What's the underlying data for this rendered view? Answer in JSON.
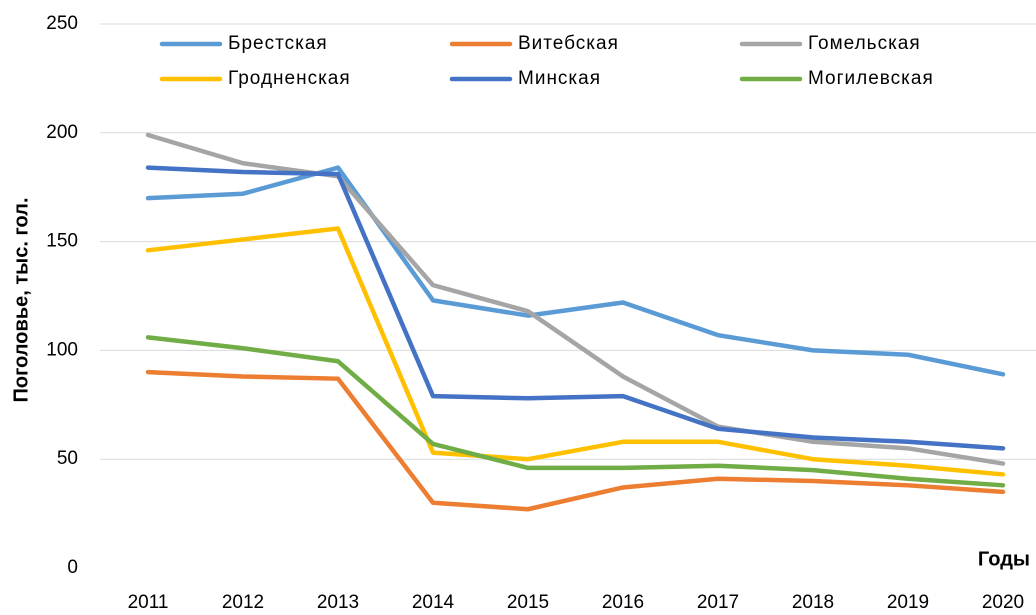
{
  "chart_data": {
    "type": "line",
    "y_label": "Поголовье, тыс. гол.",
    "x_label": "Годы",
    "categories": [
      "2011",
      "2012",
      "2013",
      "2014",
      "2015",
      "2016",
      "2017",
      "2018",
      "2019",
      "2020"
    ],
    "series": [
      {
        "name": "Брестская",
        "color": "#5b9bd5",
        "values": [
          170,
          172,
          184,
          123,
          116,
          122,
          107,
          100,
          98,
          89
        ]
      },
      {
        "name": "Витебская",
        "color": "#ed7d31",
        "values": [
          90,
          88,
          87,
          30,
          27,
          37,
          41,
          40,
          38,
          35
        ]
      },
      {
        "name": "Гомельская",
        "color": "#a5a5a5",
        "values": [
          199,
          186,
          180,
          130,
          118,
          88,
          65,
          58,
          55,
          48
        ]
      },
      {
        "name": "Гродненская",
        "color": "#ffc000",
        "values": [
          146,
          151,
          156,
          53,
          50,
          58,
          58,
          50,
          47,
          43
        ]
      },
      {
        "name": "Минская",
        "color": "#4472c4",
        "values": [
          184,
          182,
          181,
          79,
          78,
          79,
          64,
          60,
          58,
          55
        ]
      },
      {
        "name": "Могилевская",
        "color": "#70ad47",
        "values": [
          106,
          101,
          95,
          57,
          46,
          46,
          47,
          45,
          41,
          38
        ]
      }
    ],
    "ylim": [
      0,
      250
    ],
    "yticks": [
      0,
      50,
      100,
      150,
      200,
      250
    ],
    "grid": true,
    "legend": "top"
  }
}
